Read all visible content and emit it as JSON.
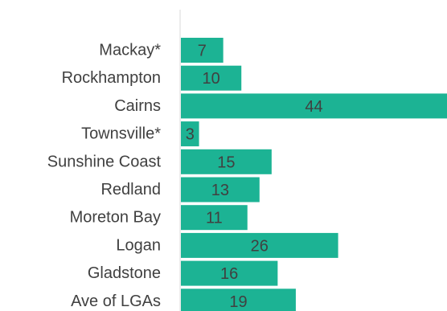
{
  "chart_data": {
    "type": "bar",
    "orientation": "horizontal",
    "categories": [
      "Mackay*",
      "Rockhampton",
      "Cairns",
      "Townsville*",
      "Sunshine Coast",
      "Redland",
      "Moreton Bay",
      "Logan",
      "Gladstone",
      "Ave of LGAs"
    ],
    "values": [
      7,
      10,
      44,
      3,
      15,
      13,
      11,
      26,
      16,
      19
    ],
    "xlim": [
      0,
      44
    ],
    "bar_color": "#1cb394",
    "axis_color": "#d9d9d9",
    "text_color": "#404040",
    "grid": false,
    "legend": "none"
  }
}
